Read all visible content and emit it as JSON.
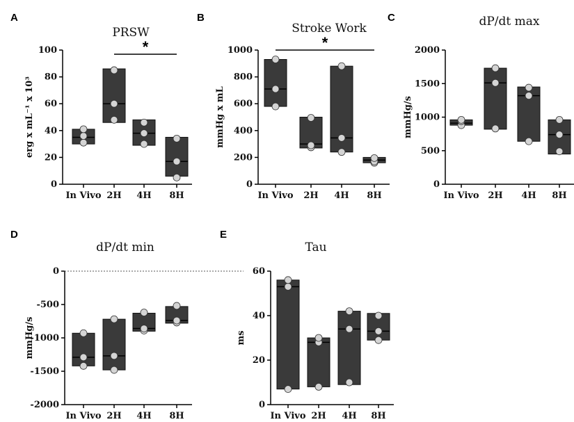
{
  "chart_data": [
    {
      "panel": "A",
      "type": "box",
      "title": "PRSW",
      "ylabel": "erg x mL⁻¹ x 10³",
      "ylim": [
        0,
        100
      ],
      "yticks": [
        "0",
        "20",
        "40",
        "60",
        "80",
        "100"
      ],
      "categories": [
        "In Vivo",
        "2H",
        "4H",
        "8H"
      ],
      "boxes": [
        {
          "low": 30,
          "median": 35,
          "high": 41
        },
        {
          "low": 46,
          "median": 60,
          "high": 86
        },
        {
          "low": 29,
          "median": 38,
          "high": 48
        },
        {
          "low": 6,
          "median": 17,
          "high": 35
        }
      ],
      "points": [
        [
          31,
          36,
          41
        ],
        [
          48,
          60,
          85
        ],
        [
          30,
          38,
          46
        ],
        [
          5,
          17,
          34
        ]
      ],
      "significance": {
        "label": "*",
        "from": 1,
        "to": 3
      }
    },
    {
      "panel": "B",
      "type": "box",
      "title": "Stroke Work",
      "ylabel": "mmHg x mL",
      "ylim": [
        0,
        1000
      ],
      "yticks": [
        "0",
        "200",
        "400",
        "600",
        "800",
        "1000"
      ],
      "categories": [
        "In Vivo",
        "2H",
        "4H",
        "8H"
      ],
      "boxes": [
        {
          "low": 580,
          "median": 710,
          "high": 930
        },
        {
          "low": 270,
          "median": 300,
          "high": 500
        },
        {
          "low": 240,
          "median": 345,
          "high": 880
        },
        {
          "low": 160,
          "median": 180,
          "high": 200
        }
      ],
      "points": [
        [
          580,
          710,
          930
        ],
        [
          275,
          290,
          495
        ],
        [
          240,
          345,
          880
        ],
        [
          160,
          170,
          195
        ]
      ],
      "significance": {
        "label": "*",
        "from": 0,
        "to": 3
      }
    },
    {
      "panel": "C",
      "type": "box",
      "title": "dP/dt max",
      "ylabel": "mmHg/s",
      "ylim": [
        0,
        2000
      ],
      "yticks": [
        "0",
        "500",
        "1000",
        "1500",
        "2000"
      ],
      "categories": [
        "In Vivo",
        "2H",
        "4H",
        "8H"
      ],
      "boxes": [
        {
          "low": 880,
          "median": 910,
          "high": 960
        },
        {
          "low": 820,
          "median": 1510,
          "high": 1730
        },
        {
          "low": 640,
          "median": 1320,
          "high": 1450
        },
        {
          "low": 450,
          "median": 740,
          "high": 960
        }
      ],
      "points": [
        [
          880,
          940,
          960
        ],
        [
          830,
          1510,
          1730
        ],
        [
          640,
          1320,
          1440
        ],
        [
          490,
          740,
          960
        ]
      ]
    },
    {
      "panel": "D",
      "type": "box",
      "title": "dP/dt min",
      "ylabel": "mmHg/s",
      "ylim": [
        -2000,
        0
      ],
      "yticks": [
        "-2000",
        "-1500",
        "-1000",
        "-500",
        "0"
      ],
      "categories": [
        "In Vivo",
        "2H",
        "4H",
        "8H"
      ],
      "zero_line": true,
      "boxes": [
        {
          "low": -1420,
          "median": -1290,
          "high": -930
        },
        {
          "low": -1480,
          "median": -1270,
          "high": -720
        },
        {
          "low": -900,
          "median": -860,
          "high": -630
        },
        {
          "low": -780,
          "median": -740,
          "high": -530
        }
      ],
      "points": [
        [
          -1420,
          -1290,
          -930
        ],
        [
          -1480,
          -1270,
          -720
        ],
        [
          -890,
          -860,
          -620
        ],
        [
          -770,
          -740,
          -520
        ]
      ]
    },
    {
      "panel": "E",
      "type": "box",
      "title": "Tau",
      "ylabel": "ms",
      "ylim": [
        0,
        60
      ],
      "yticks": [
        "0",
        "20",
        "40",
        "60"
      ],
      "categories": [
        "In Vivo",
        "2H",
        "4H",
        "8H"
      ],
      "boxes": [
        {
          "low": 7,
          "median": 53,
          "high": 56
        },
        {
          "low": 8,
          "median": 28,
          "high": 30
        },
        {
          "low": 9,
          "median": 34,
          "high": 42
        },
        {
          "low": 29,
          "median": 33,
          "high": 41
        }
      ],
      "points": [
        [
          7,
          53,
          56
        ],
        [
          8,
          28,
          30
        ],
        [
          10,
          34,
          42
        ],
        [
          29,
          33,
          40
        ]
      ]
    }
  ],
  "colors": {
    "box_fill": "#3a3a3a",
    "box_stroke": "#111111",
    "point_fill": "#d4d4d4",
    "axis": "#000000"
  }
}
